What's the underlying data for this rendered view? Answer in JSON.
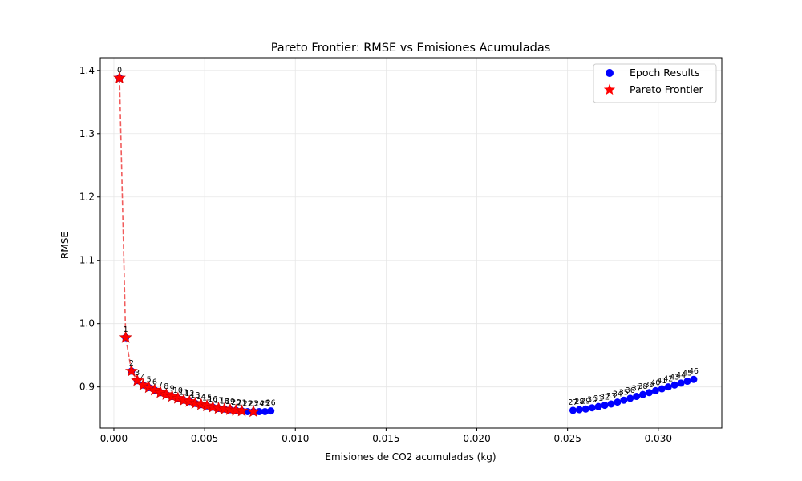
{
  "chart_data": {
    "type": "scatter",
    "title": "Pareto Frontier: RMSE vs Emisiones Acumuladas",
    "xlabel": "Emisiones de CO2 acumuladas (kg)",
    "ylabel": "RMSE",
    "xlim": [
      -0.00075,
      0.0335
    ],
    "ylim": [
      0.835,
      1.42
    ],
    "xticks": [
      0.0,
      0.005,
      0.01,
      0.015,
      0.02,
      0.025,
      0.03
    ],
    "xtick_labels": [
      "0.000",
      "0.005",
      "0.010",
      "0.015",
      "0.020",
      "0.025",
      "0.030"
    ],
    "yticks": [
      0.9,
      1.0,
      1.1,
      1.2,
      1.3,
      1.4
    ],
    "ytick_labels": [
      "0.9",
      "1.0",
      "1.1",
      "1.2",
      "1.3",
      "1.4"
    ],
    "grid": true,
    "legend_position": "top-right",
    "colors": {
      "epoch": "#0000ff",
      "pareto": "#ff0000",
      "line": "#ee3333"
    },
    "series": [
      {
        "name": "Epoch Results",
        "marker": "circle",
        "points": [
          {
            "label": "0",
            "x": 0.00031,
            "y": 1.388
          },
          {
            "label": "1",
            "x": 0.00065,
            "y": 0.978
          },
          {
            "label": "2",
            "x": 0.00097,
            "y": 0.925
          },
          {
            "label": "3",
            "x": 0.00129,
            "y": 0.91
          },
          {
            "label": "4",
            "x": 0.00161,
            "y": 0.903
          },
          {
            "label": "5",
            "x": 0.00193,
            "y": 0.899
          },
          {
            "label": "6",
            "x": 0.00225,
            "y": 0.895
          },
          {
            "label": "7",
            "x": 0.00257,
            "y": 0.891
          },
          {
            "label": "8",
            "x": 0.00289,
            "y": 0.888
          },
          {
            "label": "9",
            "x": 0.00321,
            "y": 0.885
          },
          {
            "label": "10",
            "x": 0.00353,
            "y": 0.882
          },
          {
            "label": "11",
            "x": 0.00385,
            "y": 0.879
          },
          {
            "label": "12",
            "x": 0.00417,
            "y": 0.877
          },
          {
            "label": "13",
            "x": 0.00449,
            "y": 0.874
          },
          {
            "label": "14",
            "x": 0.00481,
            "y": 0.872
          },
          {
            "label": "15",
            "x": 0.00513,
            "y": 0.87
          },
          {
            "label": "16",
            "x": 0.00545,
            "y": 0.868
          },
          {
            "label": "17",
            "x": 0.00577,
            "y": 0.866
          },
          {
            "label": "18",
            "x": 0.00609,
            "y": 0.865
          },
          {
            "label": "19",
            "x": 0.00641,
            "y": 0.864
          },
          {
            "label": "20",
            "x": 0.00673,
            "y": 0.863
          },
          {
            "label": "21",
            "x": 0.00705,
            "y": 0.862
          },
          {
            "label": "22",
            "x": 0.00737,
            "y": 0.861
          },
          {
            "label": "23",
            "x": 0.00769,
            "y": 0.861
          },
          {
            "label": "24",
            "x": 0.00801,
            "y": 0.861
          },
          {
            "label": "25",
            "x": 0.00833,
            "y": 0.861
          },
          {
            "label": "26",
            "x": 0.00865,
            "y": 0.862
          },
          {
            "label": "27",
            "x": 0.0253,
            "y": 0.863
          },
          {
            "label": "28",
            "x": 0.02565,
            "y": 0.864
          },
          {
            "label": "29",
            "x": 0.026,
            "y": 0.865
          },
          {
            "label": "30",
            "x": 0.02635,
            "y": 0.867
          },
          {
            "label": "31",
            "x": 0.0267,
            "y": 0.869
          },
          {
            "label": "32",
            "x": 0.02705,
            "y": 0.871
          },
          {
            "label": "33",
            "x": 0.0274,
            "y": 0.873
          },
          {
            "label": "34",
            "x": 0.02775,
            "y": 0.876
          },
          {
            "label": "35",
            "x": 0.0281,
            "y": 0.879
          },
          {
            "label": "36",
            "x": 0.02845,
            "y": 0.882
          },
          {
            "label": "37",
            "x": 0.0288,
            "y": 0.885
          },
          {
            "label": "38",
            "x": 0.02915,
            "y": 0.888
          },
          {
            "label": "39",
            "x": 0.0295,
            "y": 0.891
          },
          {
            "label": "40",
            "x": 0.02985,
            "y": 0.894
          },
          {
            "label": "41",
            "x": 0.0302,
            "y": 0.897
          },
          {
            "label": "42",
            "x": 0.03055,
            "y": 0.9
          },
          {
            "label": "43",
            "x": 0.0309,
            "y": 0.903
          },
          {
            "label": "44",
            "x": 0.03125,
            "y": 0.906
          },
          {
            "label": "45",
            "x": 0.0316,
            "y": 0.909
          },
          {
            "label": "46",
            "x": 0.03195,
            "y": 0.912
          }
        ]
      },
      {
        "name": "Pareto Frontier",
        "marker": "star",
        "points": [
          {
            "x": 0.00031,
            "y": 1.388
          },
          {
            "x": 0.00065,
            "y": 0.978
          },
          {
            "x": 0.00097,
            "y": 0.925
          },
          {
            "x": 0.00129,
            "y": 0.91
          },
          {
            "x": 0.00161,
            "y": 0.903
          },
          {
            "x": 0.00193,
            "y": 0.899
          },
          {
            "x": 0.00225,
            "y": 0.895
          },
          {
            "x": 0.00257,
            "y": 0.891
          },
          {
            "x": 0.00289,
            "y": 0.888
          },
          {
            "x": 0.00321,
            "y": 0.885
          },
          {
            "x": 0.00353,
            "y": 0.882
          },
          {
            "x": 0.00385,
            "y": 0.879
          },
          {
            "x": 0.00417,
            "y": 0.877
          },
          {
            "x": 0.00449,
            "y": 0.874
          },
          {
            "x": 0.00481,
            "y": 0.872
          },
          {
            "x": 0.00513,
            "y": 0.87
          },
          {
            "x": 0.00545,
            "y": 0.868
          },
          {
            "x": 0.00577,
            "y": 0.866
          },
          {
            "x": 0.00609,
            "y": 0.865
          },
          {
            "x": 0.00641,
            "y": 0.864
          },
          {
            "x": 0.00673,
            "y": 0.863
          },
          {
            "x": 0.00705,
            "y": 0.862
          },
          {
            "x": 0.00769,
            "y": 0.861
          }
        ]
      }
    ]
  }
}
